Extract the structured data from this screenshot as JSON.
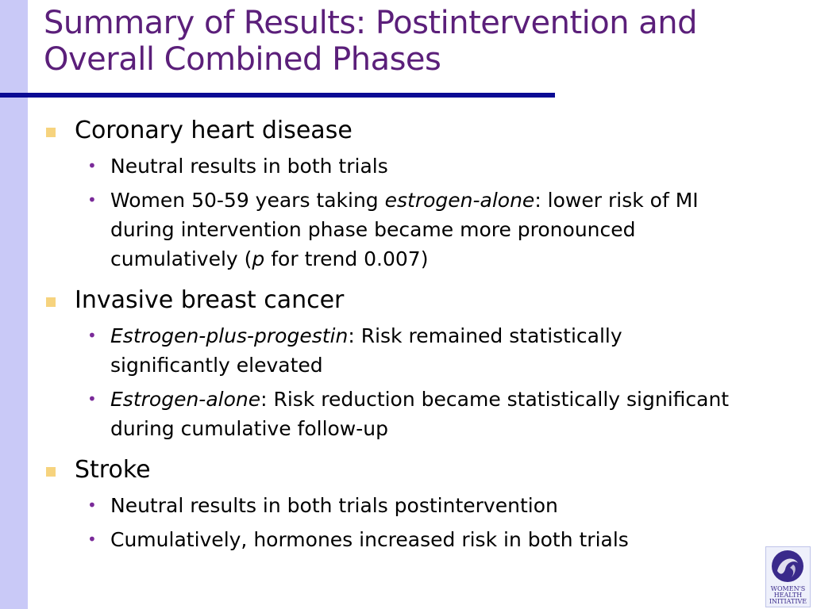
{
  "slide": {
    "title_line1": "Summary of Results: Postintervention and",
    "title_line2": "Overall Combined Phases",
    "colors": {
      "title": "#5b1f7a",
      "rule": "#0b0b94",
      "left_bar": "#c9c9f7",
      "bullet_square": "#f6d37e",
      "bullet_dot": "#7a2a99"
    }
  },
  "sections": [
    {
      "heading": "Coronary heart disease",
      "items": [
        {
          "text": "Neutral results in both trials"
        },
        {
          "pre": "Women 50-59 years taking ",
          "em": "estrogen-alone",
          "post": ": lower risk of MI during intervention phase became more pronounced cumulatively (",
          "em2": "p",
          "post2": " for trend 0.007)"
        }
      ]
    },
    {
      "heading": "Invasive breast cancer",
      "items": [
        {
          "em": "Estrogen-plus-progestin",
          "post": ": Risk remained statistically significantly elevated"
        },
        {
          "em": "Estrogen-alone",
          "post": ": Risk reduction became statistically significant during cumulative follow-up"
        }
      ]
    },
    {
      "heading": "Stroke",
      "items": [
        {
          "text": "Neutral results in both trials postintervention"
        },
        {
          "text": "Cumulatively, hormones increased risk in both trials"
        }
      ]
    }
  ],
  "logo": {
    "line1": "WOMEN'S",
    "line2": "HEALTH",
    "line3": "INITIATIVE",
    "icon": "womens-health-initiative-logo-icon"
  }
}
